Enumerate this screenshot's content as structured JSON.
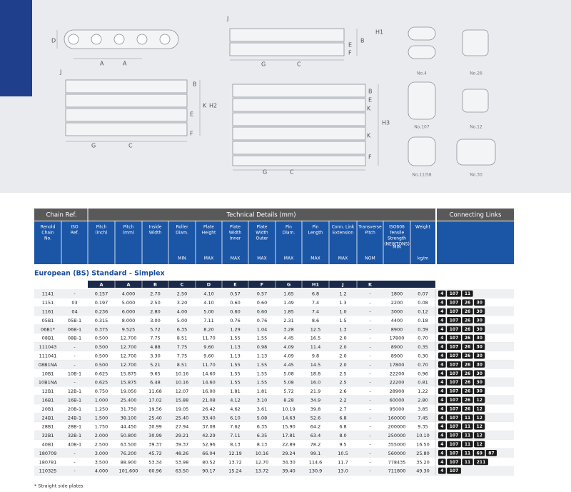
{
  "diagrams": {
    "labels": [
      "D",
      "A",
      "A",
      "J",
      "J",
      "B",
      "H1",
      "E",
      "F",
      "G",
      "C",
      "B",
      "K",
      "H2",
      "E",
      "F",
      "G",
      "C",
      "B",
      "E",
      "K",
      "H3",
      "K",
      "F",
      "G",
      "C"
    ],
    "link_captions": [
      "No.4",
      "No.26",
      "No.107",
      "No.12",
      "No.11/58",
      "No.30"
    ]
  },
  "table": {
    "group_headers": [
      "Chain Ref.",
      "Technical Details (mm)",
      "Connecting Links"
    ],
    "columns": [
      {
        "label": [
          "Renold",
          "Chain",
          "No."
        ]
      },
      {
        "label": [
          "ISO",
          "Ref."
        ]
      },
      {
        "label": [
          "Pitch",
          "(inch)"
        ],
        "letter": "A"
      },
      {
        "label": [
          "Pitch",
          "(mm)"
        ],
        "letter": "A"
      },
      {
        "label": [
          "Inside",
          "Width"
        ],
        "letter": "B"
      },
      {
        "label": [
          "Roller",
          "Diam."
        ],
        "unit": "MIN",
        "letter": "C"
      },
      {
        "label": [
          "Plate",
          "Height"
        ],
        "unit": "MAX",
        "letter": "D"
      },
      {
        "label": [
          "Plate",
          "Width",
          "Inner"
        ],
        "unit": "MAX",
        "letter": "E"
      },
      {
        "label": [
          "Plate",
          "Width",
          "Outer"
        ],
        "unit": "MAX",
        "letter": "F"
      },
      {
        "label": [
          "Pin",
          "Diam."
        ],
        "unit": "MAX",
        "letter": "G"
      },
      {
        "label": [
          "Pin",
          "Length"
        ],
        "unit": "MAX",
        "letter": "H1"
      },
      {
        "label": [
          "Conn. Link",
          "Extension"
        ],
        "unit": "MAX",
        "letter": "J"
      },
      {
        "label": [
          "Transverse",
          "Pitch"
        ],
        "unit": "NOM",
        "letter": "K"
      },
      {
        "label": [
          "ISO606",
          "Tensile",
          "Strength",
          "(NEWTONS)"
        ],
        "unit": "MIN"
      },
      {
        "label": [
          "Weight"
        ],
        "unit": "kg/m"
      }
    ],
    "section_title": "European (BS) Standard - Simplex",
    "rows": [
      [
        "1141",
        "-",
        "0.157",
        "4.000",
        "2.70",
        "2.50",
        "4.10",
        "0.57",
        "0.57",
        "1.65",
        "6.8",
        "1.2",
        "-",
        "1800",
        "0.07"
      ],
      [
        "1151",
        "03",
        "0.197",
        "5.000",
        "2.50",
        "3.20",
        "4.10",
        "0.60",
        "0.60",
        "1.49",
        "7.4",
        "1.3",
        "-",
        "2200",
        "0.08"
      ],
      [
        "1161",
        "04",
        "0.236",
        "6.000",
        "2.80",
        "4.00",
        "5.00",
        "0.60",
        "0.60",
        "1.85",
        "7.4",
        "1.0",
        "-",
        "3000",
        "0.12"
      ],
      [
        "05B1",
        "05B-1",
        "0.315",
        "8.000",
        "3.00",
        "5.00",
        "7.11",
        "0.76",
        "0.76",
        "2.31",
        "8.6",
        "1.5",
        "-",
        "4400",
        "0.18"
      ],
      [
        "06B1*",
        "06B-1",
        "0.375",
        "9.525",
        "5.72",
        "6.35",
        "8.20",
        "1.29",
        "1.04",
        "3.28",
        "12.5",
        "1.3",
        "-",
        "8900",
        "0.39"
      ],
      [
        "08B1",
        "08B-1",
        "0.500",
        "12.700",
        "7.75",
        "8.51",
        "11.70",
        "1.55",
        "1.55",
        "4.45",
        "16.5",
        "2.0",
        "-",
        "17800",
        "0.70"
      ],
      [
        "111043",
        "-",
        "0.500",
        "12.700",
        "4.88",
        "7.75",
        "9.60",
        "1.13",
        "0.98",
        "4.09",
        "11.4",
        "2.0",
        "-",
        "8900",
        "0.35"
      ],
      [
        "111041",
        "-",
        "0.500",
        "12.700",
        "3.30",
        "7.75",
        "9.60",
        "1.13",
        "1.13",
        "4.09",
        "9.8",
        "2.0",
        "-",
        "8900",
        "0.30"
      ],
      [
        "08B1NA",
        "-",
        "0.500",
        "12.700",
        "5.21",
        "8.51",
        "11.70",
        "1.55",
        "1.55",
        "4.45",
        "14.5",
        "2.0",
        "-",
        "17800",
        "0.70"
      ],
      [
        "10B1",
        "10B-1",
        "0.625",
        "15.875",
        "9.65",
        "10.16",
        "14.60",
        "1.55",
        "1.55",
        "5.08",
        "18.8",
        "2.5",
        "-",
        "22200",
        "0.96"
      ],
      [
        "10B1NA",
        "-",
        "0.625",
        "15.875",
        "6.48",
        "10.16",
        "14.60",
        "1.55",
        "1.55",
        "5.08",
        "16.0",
        "2.5",
        "-",
        "22200",
        "0.81"
      ],
      [
        "12B1",
        "12B-1",
        "0.750",
        "19.050",
        "11.68",
        "12.07",
        "16.00",
        "1.81",
        "1.81",
        "5.72",
        "21.9",
        "2.6",
        "-",
        "28900",
        "1.22"
      ],
      [
        "16B1",
        "16B-1",
        "1.000",
        "25.400",
        "17.02",
        "15.88",
        "21.08",
        "4.12",
        "3.10",
        "8.28",
        "34.9",
        "2.2",
        "-",
        "60000",
        "2.80"
      ],
      [
        "20B1",
        "20B-1",
        "1.250",
        "31.750",
        "19.56",
        "19.05",
        "26.42",
        "4.62",
        "3.61",
        "10.19",
        "39.8",
        "2.7",
        "-",
        "95000",
        "3.85"
      ],
      [
        "24B1",
        "24B-1",
        "1.500",
        "38.100",
        "25.40",
        "25.40",
        "33.40",
        "6.10",
        "5.08",
        "14.63",
        "52.6",
        "6.8",
        "-",
        "160000",
        "7.45"
      ],
      [
        "28B1",
        "28B-1",
        "1.750",
        "44.450",
        "30.99",
        "27.94",
        "37.08",
        "7.62",
        "6.35",
        "15.90",
        "64.2",
        "6.8",
        "-",
        "200000",
        "9.35"
      ],
      [
        "32B1",
        "32B-1",
        "2.000",
        "50.800",
        "30.99",
        "29.21",
        "42.29",
        "7.11",
        "6.35",
        "17.81",
        "63.4",
        "8.0",
        "-",
        "250000",
        "10.10"
      ],
      [
        "40B1",
        "40B-1",
        "2.500",
        "63.500",
        "39.37",
        "39.37",
        "52.96",
        "8.13",
        "8.13",
        "22.89",
        "78.2",
        "9.5",
        "-",
        "355000",
        "16.50"
      ],
      [
        "180709",
        "-",
        "3.000",
        "76.200",
        "45.72",
        "48.26",
        "66.04",
        "12.19",
        "10.16",
        "29.24",
        "99.1",
        "10.5",
        "-",
        "560000",
        "25.80"
      ],
      [
        "180781",
        "-",
        "3.500",
        "88.900",
        "53.34",
        "53.98",
        "80.52",
        "13.72",
        "12.70",
        "34.30",
        "114.6",
        "11.7",
        "-",
        "778435",
        "35.20"
      ],
      [
        "110325",
        "-",
        "4.000",
        "101.600",
        "60.96",
        "63.50",
        "90.17",
        "15.24",
        "13.72",
        "39.40",
        "130.9",
        "13.0",
        "-",
        "711800",
        "49.30"
      ]
    ],
    "links": [
      [
        "4",
        "107",
        "11"
      ],
      [
        "4",
        "107",
        "26",
        "30"
      ],
      [
        "4",
        "107",
        "26",
        "30"
      ],
      [
        "4",
        "107",
        "26",
        "30"
      ],
      [
        "4",
        "107",
        "26",
        "30"
      ],
      [
        "4",
        "107",
        "26",
        "30"
      ],
      [
        "4",
        "107",
        "26",
        "30"
      ],
      [
        "4",
        "107",
        "26",
        "30"
      ],
      [
        "4",
        "107",
        "26",
        "30"
      ],
      [
        "4",
        "107",
        "26",
        "30"
      ],
      [
        "4",
        "107",
        "26",
        "30"
      ],
      [
        "4",
        "107",
        "26",
        "30"
      ],
      [
        "4",
        "107",
        "26",
        "12"
      ],
      [
        "4",
        "107",
        "26",
        "12"
      ],
      [
        "4",
        "107",
        "11",
        "12"
      ],
      [
        "4",
        "107",
        "11",
        "12"
      ],
      [
        "4",
        "107",
        "11",
        "12"
      ],
      [
        "4",
        "107",
        "11",
        "12"
      ],
      [
        "4",
        "107",
        "11",
        "69",
        "87"
      ],
      [
        "4",
        "107",
        "11",
        "211"
      ],
      [
        "4",
        "107"
      ]
    ],
    "footnote": "* Straight side plates"
  }
}
